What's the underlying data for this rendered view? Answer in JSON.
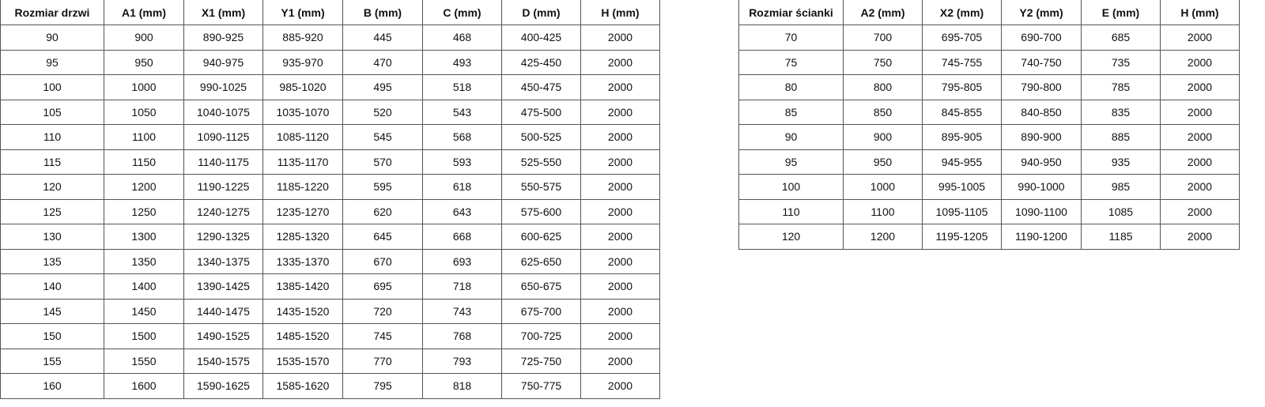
{
  "doors_table": {
    "headers": [
      "Rozmiar drzwi",
      "A1 (mm)",
      "X1 (mm)",
      "Y1 (mm)",
      "B (mm)",
      "C (mm)",
      "D (mm)",
      "H (mm)"
    ],
    "rows": [
      [
        "90",
        "900",
        "890-925",
        "885-920",
        "445",
        "468",
        "400-425",
        "2000"
      ],
      [
        "95",
        "950",
        "940-975",
        "935-970",
        "470",
        "493",
        "425-450",
        "2000"
      ],
      [
        "100",
        "1000",
        "990-1025",
        "985-1020",
        "495",
        "518",
        "450-475",
        "2000"
      ],
      [
        "105",
        "1050",
        "1040-1075",
        "1035-1070",
        "520",
        "543",
        "475-500",
        "2000"
      ],
      [
        "110",
        "1100",
        "1090-1125",
        "1085-1120",
        "545",
        "568",
        "500-525",
        "2000"
      ],
      [
        "115",
        "1150",
        "1140-1175",
        "1135-1170",
        "570",
        "593",
        "525-550",
        "2000"
      ],
      [
        "120",
        "1200",
        "1190-1225",
        "1185-1220",
        "595",
        "618",
        "550-575",
        "2000"
      ],
      [
        "125",
        "1250",
        "1240-1275",
        "1235-1270",
        "620",
        "643",
        "575-600",
        "2000"
      ],
      [
        "130",
        "1300",
        "1290-1325",
        "1285-1320",
        "645",
        "668",
        "600-625",
        "2000"
      ],
      [
        "135",
        "1350",
        "1340-1375",
        "1335-1370",
        "670",
        "693",
        "625-650",
        "2000"
      ],
      [
        "140",
        "1400",
        "1390-1425",
        "1385-1420",
        "695",
        "718",
        "650-675",
        "2000"
      ],
      [
        "145",
        "1450",
        "1440-1475",
        "1435-1520",
        "720",
        "743",
        "675-700",
        "2000"
      ],
      [
        "150",
        "1500",
        "1490-1525",
        "1485-1520",
        "745",
        "768",
        "700-725",
        "2000"
      ],
      [
        "155",
        "1550",
        "1540-1575",
        "1535-1570",
        "770",
        "793",
        "725-750",
        "2000"
      ],
      [
        "160",
        "1600",
        "1590-1625",
        "1585-1620",
        "795",
        "818",
        "750-775",
        "2000"
      ]
    ]
  },
  "walls_table": {
    "headers": [
      "Rozmiar ścianki",
      "A2 (mm)",
      "X2 (mm)",
      "Y2 (mm)",
      "E (mm)",
      "H (mm)"
    ],
    "rows": [
      [
        "70",
        "700",
        "695-705",
        "690-700",
        "685",
        "2000"
      ],
      [
        "75",
        "750",
        "745-755",
        "740-750",
        "735",
        "2000"
      ],
      [
        "80",
        "800",
        "795-805",
        "790-800",
        "785",
        "2000"
      ],
      [
        "85",
        "850",
        "845-855",
        "840-850",
        "835",
        "2000"
      ],
      [
        "90",
        "900",
        "895-905",
        "890-900",
        "885",
        "2000"
      ],
      [
        "95",
        "950",
        "945-955",
        "940-950",
        "935",
        "2000"
      ],
      [
        "100",
        "1000",
        "995-1005",
        "990-1000",
        "985",
        "2000"
      ],
      [
        "110",
        "1100",
        "1095-1105",
        "1090-1100",
        "1085",
        "2000"
      ],
      [
        "120",
        "1200",
        "1195-1205",
        "1190-1200",
        "1185",
        "2000"
      ]
    ]
  }
}
